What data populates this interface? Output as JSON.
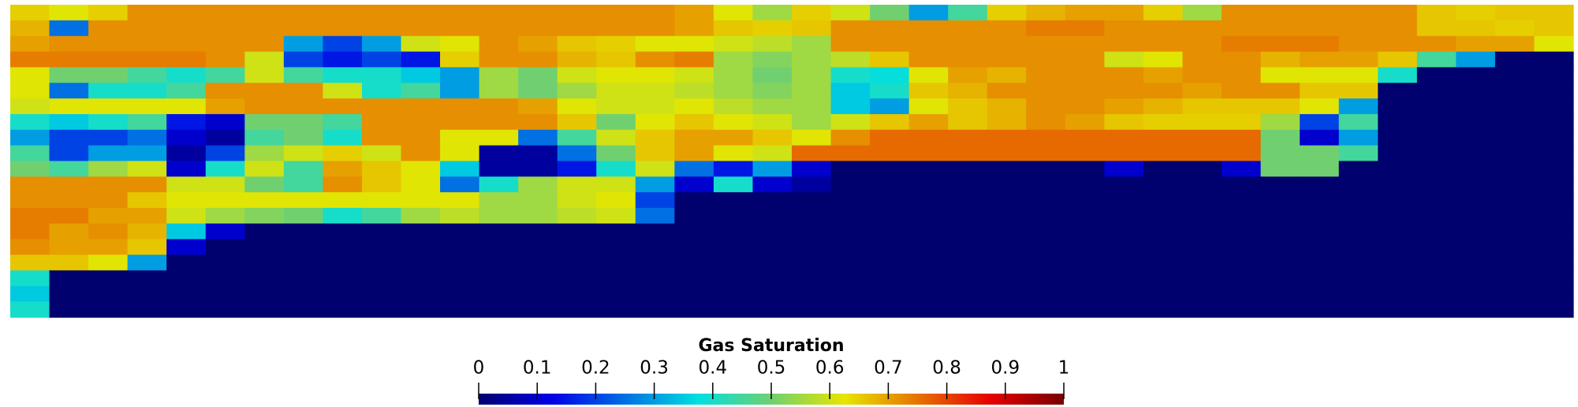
{
  "chart_data": {
    "type": "heatmap",
    "colorbar": {
      "title": "Gas Saturation",
      "range": [
        0,
        1
      ],
      "ticks": [
        0,
        0.1,
        0.2,
        0.3,
        0.4,
        0.5,
        0.6,
        0.7,
        0.8,
        0.9,
        1
      ]
    },
    "colormap": [
      [
        0,
        "#00006e"
      ],
      [
        0.125,
        "#0000e6"
      ],
      [
        0.375,
        "#00e0e0"
      ],
      [
        0.5,
        "#70d070"
      ],
      [
        0.625,
        "#e6e600"
      ],
      [
        0.875,
        "#e60000"
      ],
      [
        1,
        "#780000"
      ]
    ],
    "z": [
      [
        0.65,
        0.62,
        0.65,
        0.72,
        0.72,
        0.72,
        0.72,
        0.72,
        0.72,
        0.72,
        0.72,
        0.72,
        0.72,
        0.72,
        0.72,
        0.72,
        0.72,
        0.7,
        0.62,
        0.55,
        0.65,
        0.6,
        0.5,
        0.3,
        0.45,
        0.65,
        0.68,
        0.7,
        0.7,
        0.65,
        0.55,
        0.72,
        0.72,
        0.72,
        0.72,
        0.72,
        0.66,
        0.65,
        0.66,
        0.66
      ],
      [
        0.68,
        0.25,
        0.72,
        0.72,
        0.72,
        0.72,
        0.72,
        0.72,
        0.72,
        0.72,
        0.72,
        0.72,
        0.72,
        0.72,
        0.72,
        0.72,
        0.72,
        0.7,
        0.66,
        0.65,
        0.66,
        0.72,
        0.72,
        0.72,
        0.72,
        0.72,
        0.74,
        0.74,
        0.72,
        0.72,
        0.72,
        0.72,
        0.72,
        0.72,
        0.72,
        0.72,
        0.66,
        0.66,
        0.65,
        0.66
      ],
      [
        0.7,
        0.72,
        0.72,
        0.72,
        0.72,
        0.72,
        0.72,
        0.3,
        0.2,
        0.3,
        0.6,
        0.62,
        0.72,
        0.7,
        0.66,
        0.65,
        0.62,
        0.62,
        0.6,
        0.58,
        0.55,
        0.72,
        0.72,
        0.72,
        0.72,
        0.72,
        0.72,
        0.72,
        0.72,
        0.72,
        0.72,
        0.74,
        0.74,
        0.74,
        0.72,
        0.72,
        0.72,
        0.7,
        0.7,
        0.62
      ],
      [
        0.74,
        0.74,
        0.74,
        0.74,
        0.74,
        0.72,
        0.6,
        0.2,
        0.15,
        0.2,
        0.15,
        0.65,
        0.72,
        0.72,
        0.68,
        0.66,
        0.72,
        0.74,
        0.55,
        0.52,
        0.55,
        0.58,
        0.66,
        0.72,
        0.72,
        0.72,
        0.72,
        0.72,
        0.6,
        0.62,
        0.72,
        0.72,
        0.68,
        0.7,
        0.7,
        0.66,
        0.45,
        0.3,
        0,
        0
      ],
      [
        0.62,
        0.5,
        0.5,
        0.45,
        0.4,
        0.45,
        0.6,
        0.45,
        0.4,
        0.4,
        0.35,
        0.3,
        0.55,
        0.5,
        0.6,
        0.62,
        0.62,
        0.6,
        0.55,
        0.5,
        0.55,
        0.4,
        0.38,
        0.62,
        0.7,
        0.68,
        0.72,
        0.72,
        0.72,
        0.7,
        0.72,
        0.72,
        0.62,
        0.62,
        0.62,
        0.4,
        0,
        0,
        0,
        0
      ],
      [
        0.62,
        0.25,
        0.4,
        0.4,
        0.45,
        0.72,
        0.72,
        0.72,
        0.6,
        0.4,
        0.45,
        0.3,
        0.55,
        0.5,
        0.55,
        0.6,
        0.6,
        0.58,
        0.55,
        0.52,
        0.55,
        0.35,
        0.4,
        0.66,
        0.68,
        0.72,
        0.72,
        0.72,
        0.72,
        0.72,
        0.7,
        0.72,
        0.72,
        0.66,
        0.66,
        0,
        0,
        0,
        0,
        0
      ],
      [
        0.6,
        0.62,
        0.62,
        0.62,
        0.62,
        0.7,
        0.72,
        0.72,
        0.72,
        0.72,
        0.72,
        0.72,
        0.72,
        0.7,
        0.62,
        0.6,
        0.6,
        0.62,
        0.58,
        0.55,
        0.55,
        0.35,
        0.3,
        0.62,
        0.66,
        0.68,
        0.72,
        0.72,
        0.7,
        0.68,
        0.66,
        0.66,
        0.66,
        0.62,
        0.3,
        0,
        0,
        0,
        0,
        0
      ],
      [
        0.4,
        0.35,
        0.4,
        0.45,
        0.15,
        0.1,
        0.5,
        0.5,
        0.45,
        0.72,
        0.72,
        0.72,
        0.72,
        0.72,
        0.66,
        0.5,
        0.62,
        0.66,
        0.62,
        0.6,
        0.55,
        0.6,
        0.66,
        0.7,
        0.66,
        0.68,
        0.72,
        0.7,
        0.66,
        0.65,
        0.65,
        0.65,
        0.55,
        0.2,
        0.45,
        0,
        0,
        0,
        0,
        0
      ],
      [
        0.3,
        0.2,
        0.2,
        0.25,
        0.1,
        0.05,
        0.45,
        0.5,
        0.4,
        0.72,
        0.72,
        0.62,
        0.62,
        0.25,
        0.45,
        0.6,
        0.66,
        0.7,
        0.7,
        0.66,
        0.62,
        0.72,
        0.76,
        0.76,
        0.76,
        0.76,
        0.76,
        0.76,
        0.76,
        0.76,
        0.76,
        0.76,
        0.5,
        0.1,
        0.3,
        0,
        0,
        0,
        0,
        0
      ],
      [
        0.45,
        0.2,
        0.3,
        0.3,
        0.05,
        0.2,
        0.55,
        0.6,
        0.65,
        0.6,
        0.72,
        0.62,
        0.05,
        0.05,
        0.25,
        0.5,
        0.66,
        0.7,
        0.62,
        0.6,
        0.76,
        0.76,
        0.76,
        0.76,
        0.76,
        0.76,
        0.76,
        0.76,
        0.76,
        0.76,
        0.76,
        0.76,
        0.5,
        0.5,
        0.45,
        0,
        0,
        0,
        0,
        0
      ],
      [
        0.5,
        0.45,
        0.55,
        0.6,
        0.1,
        0.4,
        0.6,
        0.45,
        0.7,
        0.66,
        0.62,
        0.35,
        0.05,
        0.05,
        0.15,
        0.4,
        0.6,
        0.25,
        0.15,
        0.3,
        0.1,
        0,
        0,
        0,
        0,
        0,
        0,
        0,
        0.1,
        0,
        0,
        0.1,
        0.5,
        0.5,
        0,
        0,
        0,
        0,
        0,
        0
      ],
      [
        0.72,
        0.72,
        0.72,
        0.72,
        0.6,
        0.6,
        0.5,
        0.45,
        0.72,
        0.66,
        0.62,
        0.25,
        0.4,
        0.55,
        0.6,
        0.6,
        0.3,
        0.1,
        0.4,
        0.1,
        0.05,
        0,
        0,
        0,
        0,
        0,
        0,
        0,
        0,
        0,
        0,
        0,
        0,
        0,
        0,
        0,
        0,
        0,
        0,
        0
      ],
      [
        0.72,
        0.72,
        0.72,
        0.66,
        0.62,
        0.62,
        0.62,
        0.62,
        0.62,
        0.62,
        0.62,
        0.62,
        0.55,
        0.55,
        0.6,
        0.62,
        0.2,
        0,
        0,
        0,
        0,
        0,
        0,
        0,
        0,
        0,
        0,
        0,
        0,
        0,
        0,
        0,
        0,
        0,
        0,
        0,
        0,
        0,
        0,
        0
      ],
      [
        0.74,
        0.74,
        0.7,
        0.7,
        0.6,
        0.55,
        0.52,
        0.5,
        0.4,
        0.45,
        0.55,
        0.58,
        0.55,
        0.55,
        0.58,
        0.6,
        0.25,
        0,
        0,
        0,
        0,
        0,
        0,
        0,
        0,
        0,
        0,
        0,
        0,
        0,
        0,
        0,
        0,
        0,
        0,
        0,
        0,
        0,
        0,
        0
      ],
      [
        0.74,
        0.7,
        0.72,
        0.68,
        0.35,
        0.1,
        0,
        0,
        0,
        0,
        0,
        0,
        0,
        0,
        0,
        0,
        0,
        0,
        0,
        0,
        0,
        0,
        0,
        0,
        0,
        0,
        0,
        0,
        0,
        0,
        0,
        0,
        0,
        0,
        0,
        0,
        0,
        0,
        0,
        0
      ],
      [
        0.72,
        0.7,
        0.7,
        0.66,
        0.1,
        0,
        0,
        0,
        0,
        0,
        0,
        0,
        0,
        0,
        0,
        0,
        0,
        0,
        0,
        0,
        0,
        0,
        0,
        0,
        0,
        0,
        0,
        0,
        0,
        0,
        0,
        0,
        0,
        0,
        0,
        0,
        0,
        0,
        0,
        0
      ],
      [
        0.66,
        0.66,
        0.62,
        0.3,
        0,
        0,
        0,
        0,
        0,
        0,
        0,
        0,
        0,
        0,
        0,
        0,
        0,
        0,
        0,
        0,
        0,
        0,
        0,
        0,
        0,
        0,
        0,
        0,
        0,
        0,
        0,
        0,
        0,
        0,
        0,
        0,
        0,
        0,
        0,
        0
      ],
      [
        0.4,
        0,
        0,
        0,
        0,
        0,
        0,
        0,
        0,
        0,
        0,
        0,
        0,
        0,
        0,
        0,
        0,
        0,
        0,
        0,
        0,
        0,
        0,
        0,
        0,
        0,
        0,
        0,
        0,
        0,
        0,
        0,
        0,
        0,
        0,
        0,
        0,
        0,
        0,
        0
      ],
      [
        0.35,
        0,
        0,
        0,
        0,
        0,
        0,
        0,
        0,
        0,
        0,
        0,
        0,
        0,
        0,
        0,
        0,
        0,
        0,
        0,
        0,
        0,
        0,
        0,
        0,
        0,
        0,
        0,
        0,
        0,
        0,
        0,
        0,
        0,
        0,
        0,
        0,
        0,
        0,
        0
      ],
      [
        0.4,
        0,
        0,
        0,
        0,
        0,
        0,
        0,
        0,
        0,
        0,
        0,
        0,
        0,
        0,
        0,
        0,
        0,
        0,
        0,
        0,
        0,
        0,
        0,
        0,
        0,
        0,
        0,
        0,
        0,
        0,
        0,
        0,
        0,
        0,
        0,
        0,
        0,
        0,
        0
      ]
    ]
  }
}
